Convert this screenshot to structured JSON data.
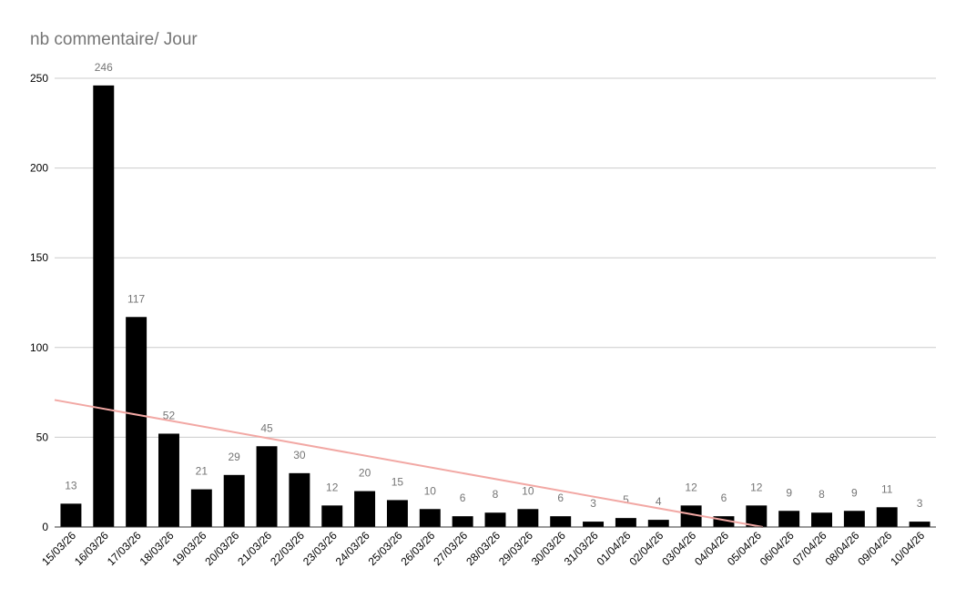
{
  "chart_data": {
    "type": "bar",
    "title": "nb commentaire/ Jour",
    "xlabel": "",
    "ylabel": "",
    "ylim": [
      0,
      250
    ],
    "yticks": [
      0,
      50,
      100,
      150,
      200,
      250
    ],
    "grid": true,
    "trendline": {
      "type": "linear",
      "color": "#f2a8a4"
    },
    "bar_color": "#000000",
    "categories": [
      "15/03/26",
      "16/03/26",
      "17/03/26",
      "18/03/26",
      "19/03/26",
      "20/03/26",
      "21/03/26",
      "22/03/26",
      "23/03/26",
      "24/03/26",
      "25/03/26",
      "26/03/26",
      "27/03/26",
      "28/03/26",
      "29/03/26",
      "30/03/26",
      "31/03/26",
      "01/04/26",
      "02/04/26",
      "03/04/26",
      "04/04/26",
      "05/04/26",
      "06/04/26",
      "07/04/26",
      "08/04/26",
      "09/04/26",
      "10/04/26"
    ],
    "values": [
      13,
      246,
      117,
      52,
      21,
      29,
      45,
      30,
      12,
      20,
      15,
      10,
      6,
      8,
      10,
      6,
      3,
      5,
      4,
      12,
      6,
      12,
      9,
      8,
      9,
      11,
      3
    ]
  }
}
